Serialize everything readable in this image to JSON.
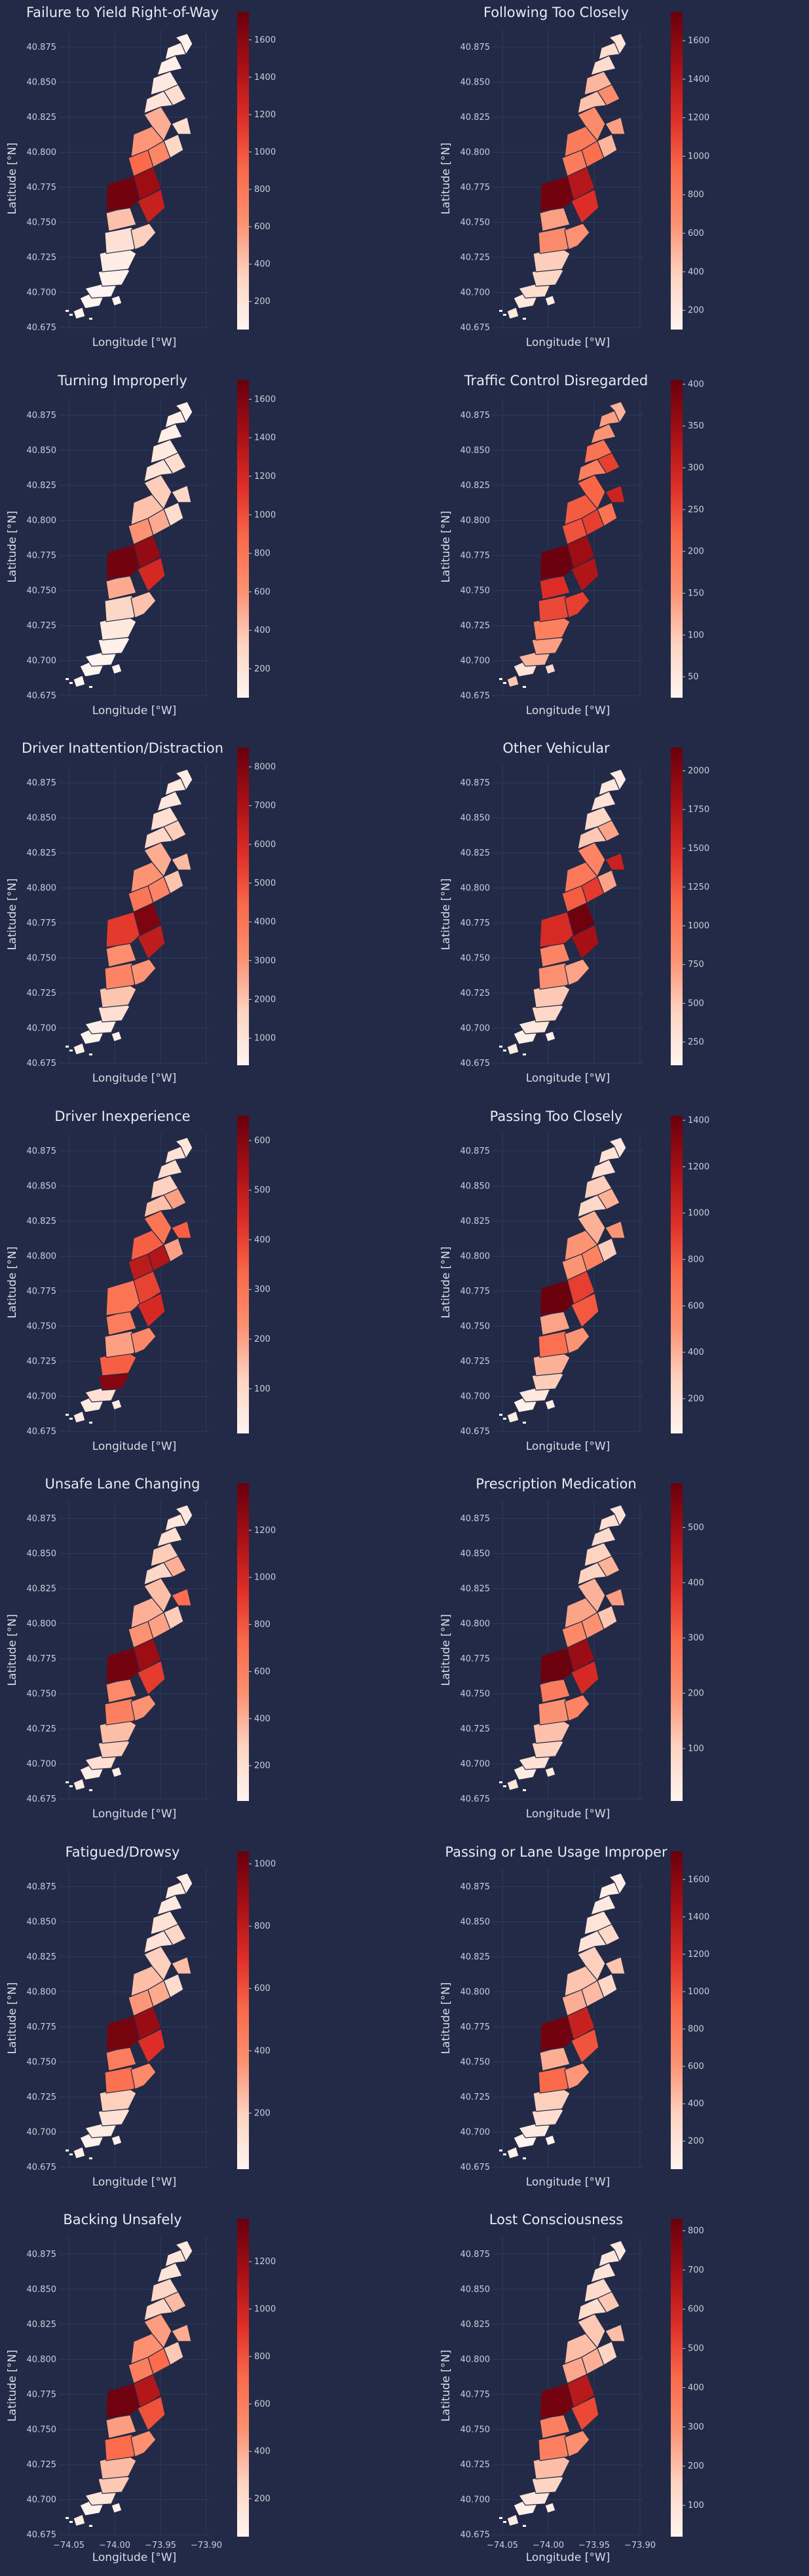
{
  "figure": {
    "background": "#222a47",
    "colormap": [
      "#fff5f0",
      "#fdd4c2",
      "#fc9272",
      "#fb6a4a",
      "#de2d26",
      "#a50f15",
      "#67000d"
    ]
  },
  "chart_data": [
    {
      "type": "heatmap",
      "title": "Failure to Yield Right-of-Way",
      "xlabel": "Longitude [°W]",
      "ylabel": "Latitude [°N]",
      "xlim": [
        -74.05,
        -73.9
      ],
      "ylim": [
        40.675,
        40.885
      ],
      "yticks": [
        "40.675",
        "40.700",
        "40.725",
        "40.750",
        "40.775",
        "40.800",
        "40.825",
        "40.850",
        "40.875"
      ],
      "xticks": [],
      "colorbar": {
        "min": 50,
        "max": 1750,
        "ticks": [
          "200",
          "400",
          "600",
          "800",
          "1000",
          "1200",
          "1400",
          "1600"
        ]
      },
      "districts": [
        40,
        55,
        80,
        120,
        220,
        350,
        420,
        1700,
        1500,
        1300,
        900,
        700,
        600,
        500,
        300,
        250,
        200,
        250,
        150,
        100,
        90,
        80,
        70,
        60
      ]
    },
    {
      "type": "heatmap",
      "title": "Following Too Closely",
      "xlabel": "Longitude [°W]",
      "ylabel": "Latitude [°N]",
      "xlim": [
        -74.05,
        -73.9
      ],
      "ylim": [
        40.675,
        40.885
      ],
      "yticks": [
        "40.675",
        "40.700",
        "40.725",
        "40.750",
        "40.775",
        "40.800",
        "40.825",
        "40.850",
        "40.875"
      ],
      "xticks": [],
      "colorbar": {
        "min": 100,
        "max": 1750,
        "ticks": [
          "200",
          "400",
          "600",
          "800",
          "1000",
          "1200",
          "1400",
          "1600"
        ]
      },
      "districts": [
        200,
        300,
        350,
        400,
        700,
        650,
        600,
        1700,
        1400,
        1200,
        800,
        900,
        800,
        700,
        500,
        600,
        450,
        700,
        500,
        300,
        300,
        250,
        200,
        200
      ]
    },
    {
      "type": "heatmap",
      "title": "Turning Improperly",
      "xlabel": "Longitude [°W]",
      "ylabel": "Latitude [°N]",
      "xlim": [
        -74.05,
        -73.9
      ],
      "ylim": [
        40.675,
        40.885
      ],
      "yticks": [
        "40.675",
        "40.700",
        "40.725",
        "40.750",
        "40.775",
        "40.800",
        "40.825",
        "40.850",
        "40.875"
      ],
      "xticks": [],
      "colorbar": {
        "min": 50,
        "max": 1700,
        "ticks": [
          "200",
          "400",
          "600",
          "800",
          "1000",
          "1200",
          "1400",
          "1600"
        ]
      },
      "districts": [
        40,
        60,
        90,
        150,
        300,
        400,
        500,
        1650,
        1500,
        1200,
        600,
        500,
        400,
        350,
        250,
        300,
        200,
        250,
        150,
        100,
        100,
        80,
        70,
        60
      ]
    },
    {
      "type": "heatmap",
      "title": "Traffic Control Disregarded",
      "xlabel": "Longitude [°W]",
      "ylabel": "Latitude [°N]",
      "xlim": [
        -74.05,
        -73.9
      ],
      "ylim": [
        40.675,
        40.885
      ],
      "yticks": [
        "40.675",
        "40.700",
        "40.725",
        "40.750",
        "40.775",
        "40.800",
        "40.825",
        "40.850",
        "40.875"
      ],
      "xticks": [],
      "colorbar": {
        "min": 25,
        "max": 405,
        "ticks": [
          "50",
          "100",
          "150",
          "200",
          "250",
          "300",
          "350",
          "400"
        ]
      },
      "districts": [
        60,
        120,
        140,
        180,
        250,
        260,
        280,
        400,
        350,
        330,
        240,
        260,
        230,
        220,
        200,
        300,
        180,
        260,
        200,
        150,
        140,
        120,
        100,
        80
      ]
    },
    {
      "type": "heatmap",
      "title": "Driver Inattention/Distraction",
      "xlabel": "Longitude [°W]",
      "ylabel": "Latitude [°N]",
      "xlim": [
        -74.05,
        -73.9
      ],
      "ylim": [
        40.675,
        40.885
      ],
      "yticks": [
        "40.675",
        "40.700",
        "40.725",
        "40.750",
        "40.775",
        "40.800",
        "40.825",
        "40.850",
        "40.875"
      ],
      "xticks": [],
      "colorbar": {
        "min": 300,
        "max": 8500,
        "ticks": [
          "1000",
          "2000",
          "3000",
          "4000",
          "5000",
          "6000",
          "7000",
          "8000"
        ]
      },
      "districts": [
        400,
        600,
        1200,
        2000,
        3500,
        3000,
        3200,
        5500,
        8000,
        6500,
        4000,
        3500,
        3000,
        2500,
        2000,
        2200,
        1500,
        1800,
        1200,
        900,
        800,
        700,
        600,
        500
      ]
    },
    {
      "type": "heatmap",
      "title": "Other Vehicular",
      "xlabel": "Longitude [°W]",
      "ylabel": "Latitude [°N]",
      "xlim": [
        -74.05,
        -73.9
      ],
      "ylim": [
        40.675,
        40.885
      ],
      "yticks": [
        "40.675",
        "40.700",
        "40.725",
        "40.750",
        "40.775",
        "40.800",
        "40.825",
        "40.850",
        "40.875"
      ],
      "xticks": [],
      "colorbar": {
        "min": 100,
        "max": 2150,
        "ticks": [
          "250",
          "500",
          "750",
          "1000",
          "1250",
          "1500",
          "1750",
          "2000"
        ]
      },
      "districts": [
        150,
        250,
        400,
        500,
        800,
        700,
        900,
        1500,
        2100,
        1800,
        1200,
        1400,
        1000,
        900,
        700,
        1600,
        500,
        700,
        400,
        300,
        250,
        200,
        200,
        150
      ]
    },
    {
      "type": "heatmap",
      "title": "Driver Inexperience",
      "xlabel": "Longitude [°W]",
      "ylabel": "Latitude [°N]",
      "xlim": [
        -74.05,
        -73.9
      ],
      "ylim": [
        40.675,
        40.885
      ],
      "yticks": [
        "40.675",
        "40.700",
        "40.725",
        "40.750",
        "40.775",
        "40.800",
        "40.825",
        "40.850",
        "40.875"
      ],
      "xticks": [],
      "colorbar": {
        "min": 10,
        "max": 650,
        "ticks": [
          "100",
          "200",
          "300",
          "400",
          "500",
          "600"
        ]
      },
      "districts": [
        40,
        80,
        600,
        350,
        200,
        250,
        280,
        300,
        400,
        450,
        500,
        520,
        350,
        300,
        200,
        350,
        150,
        200,
        120,
        90,
        70,
        60,
        50,
        40
      ]
    },
    {
      "type": "heatmap",
      "title": "Passing Too Closely",
      "xlabel": "Longitude [°W]",
      "ylabel": "Latitude [°N]",
      "xlim": [
        -74.05,
        -73.9
      ],
      "ylim": [
        40.675,
        40.885
      ],
      "yticks": [
        "40.675",
        "40.700",
        "40.725",
        "40.750",
        "40.775",
        "40.800",
        "40.825",
        "40.850",
        "40.875"
      ],
      "xticks": [],
      "colorbar": {
        "min": 50,
        "max": 1420,
        "ticks": [
          "200",
          "400",
          "600",
          "800",
          "1000",
          "1200",
          "1400"
        ]
      },
      "districts": [
        80,
        150,
        300,
        400,
        700,
        500,
        450,
        1400,
        900,
        800,
        500,
        600,
        500,
        400,
        300,
        500,
        250,
        400,
        300,
        200,
        180,
        150,
        120,
        100
      ]
    },
    {
      "type": "heatmap",
      "title": "Unsafe Lane Changing",
      "xlabel": "Longitude [°W]",
      "ylabel": "Latitude [°N]",
      "xlim": [
        -74.05,
        -73.9
      ],
      "ylim": [
        40.675,
        40.885
      ],
      "yticks": [
        "40.675",
        "40.700",
        "40.725",
        "40.750",
        "40.775",
        "40.800",
        "40.825",
        "40.850",
        "40.875"
      ],
      "xticks": [],
      "colorbar": {
        "min": 50,
        "max": 1400,
        "ticks": [
          "200",
          "400",
          "600",
          "800",
          "1000",
          "1200"
        ]
      },
      "districts": [
        100,
        200,
        300,
        350,
        600,
        500,
        550,
        1350,
        1200,
        900,
        500,
        450,
        400,
        350,
        300,
        700,
        250,
        400,
        300,
        200,
        150,
        150,
        120,
        100
      ]
    },
    {
      "type": "heatmap",
      "title": "Prescription Medication",
      "xlabel": "Longitude [°W]",
      "ylabel": "Latitude [°N]",
      "xlim": [
        -74.05,
        -73.9
      ],
      "ylim": [
        40.675,
        40.885
      ],
      "yticks": [
        "40.675",
        "40.700",
        "40.725",
        "40.750",
        "40.775",
        "40.800",
        "40.825",
        "40.850",
        "40.875"
      ],
      "xticks": [],
      "colorbar": {
        "min": 5,
        "max": 580,
        "ticks": [
          "100",
          "200",
          "300",
          "400",
          "500"
        ]
      },
      "districts": [
        30,
        60,
        100,
        130,
        200,
        230,
        250,
        570,
        500,
        400,
        220,
        200,
        170,
        150,
        120,
        180,
        100,
        150,
        100,
        80,
        70,
        60,
        50,
        40
      ]
    },
    {
      "type": "heatmap",
      "title": "Fatigued/Drowsy",
      "xlabel": "Longitude [°W]",
      "ylabel": "Latitude [°N]",
      "xlim": [
        -74.05,
        -73.9
      ],
      "ylim": [
        40.675,
        40.885
      ],
      "yticks": [
        "40.675",
        "40.700",
        "40.725",
        "40.750",
        "40.775",
        "40.800",
        "40.825",
        "40.850",
        "40.875"
      ],
      "xticks": [],
      "colorbar": {
        "min": 20,
        "max": 1040,
        "ticks": [
          "200",
          "400",
          "600",
          "800",
          "1000"
        ]
      },
      "districts": [
        40,
        70,
        120,
        200,
        500,
        400,
        450,
        1000,
        900,
        700,
        350,
        300,
        250,
        200,
        150,
        250,
        120,
        180,
        120,
        80,
        70,
        60,
        50,
        40
      ]
    },
    {
      "type": "heatmap",
      "title": "Passing or Lane Usage Improper",
      "xlabel": "Longitude [°W]",
      "ylabel": "Latitude [°N]",
      "xlim": [
        -74.05,
        -73.9
      ],
      "ylim": [
        40.675,
        40.885
      ],
      "yticks": [
        "40.675",
        "40.700",
        "40.725",
        "40.750",
        "40.775",
        "40.800",
        "40.825",
        "40.850",
        "40.875"
      ],
      "xticks": [],
      "colorbar": {
        "min": 50,
        "max": 1750,
        "ticks": [
          "200",
          "400",
          "600",
          "800",
          "1000",
          "1200",
          "1400",
          "1600"
        ]
      },
      "districts": [
        60,
        150,
        250,
        350,
        900,
        600,
        500,
        1700,
        1300,
        1000,
        500,
        450,
        400,
        350,
        300,
        400,
        200,
        300,
        200,
        150,
        120,
        100,
        90,
        70
      ]
    },
    {
      "type": "heatmap",
      "title": "Backing Unsafely",
      "xlabel": "Longitude [°W]",
      "ylabel": "Latitude [°N]",
      "xlim": [
        -74.05,
        -73.9
      ],
      "ylim": [
        40.675,
        40.885
      ],
      "yticks": [
        "40.675",
        "40.700",
        "40.725",
        "40.750",
        "40.775",
        "40.800",
        "40.825",
        "40.850",
        "40.875"
      ],
      "xticks": [
        "−74.05",
        "−74.00",
        "−73.95",
        "−73.90"
      ],
      "colorbar": {
        "min": 40,
        "max": 1380,
        "ticks": [
          "200",
          "400",
          "600",
          "800",
          "1000",
          "1200"
        ]
      },
      "districts": [
        60,
        150,
        300,
        350,
        700,
        500,
        450,
        1350,
        1100,
        800,
        600,
        700,
        500,
        450,
        300,
        400,
        250,
        350,
        250,
        150,
        150,
        120,
        100,
        80
      ]
    },
    {
      "type": "heatmap",
      "title": "Lost Consciousness",
      "xlabel": "Longitude [°W]",
      "ylabel": "Latitude [°N]",
      "xlim": [
        -74.05,
        -73.9
      ],
      "ylim": [
        40.675,
        40.885
      ],
      "yticks": [
        "40.675",
        "40.700",
        "40.725",
        "40.750",
        "40.775",
        "40.800",
        "40.825",
        "40.850",
        "40.875"
      ],
      "xticks": [
        "−74.05",
        "−74.00",
        "−73.95",
        "−73.90"
      ],
      "colorbar": {
        "min": 20,
        "max": 830,
        "ticks": [
          "100",
          "200",
          "300",
          "400",
          "500",
          "600",
          "700",
          "800"
        ]
      },
      "districts": [
        40,
        80,
        150,
        200,
        350,
        300,
        350,
        800,
        650,
        500,
        250,
        230,
        200,
        180,
        150,
        200,
        120,
        180,
        130,
        90,
        80,
        70,
        60,
        50
      ]
    }
  ]
}
